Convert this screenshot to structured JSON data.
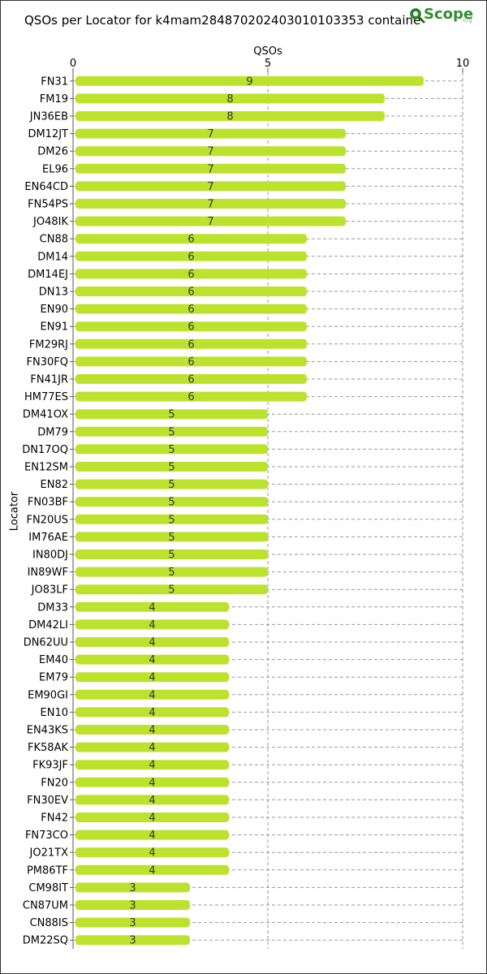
{
  "title": "QSOs per Locator for k4mam284870202403010103353 containe",
  "logo": {
    "brand": "Scope",
    "tld": ".org"
  },
  "chart_data": {
    "type": "bar",
    "orientation": "horizontal",
    "xlabel": "QSOs",
    "ylabel": "Locator",
    "xlim": [
      0,
      10
    ],
    "xticks": [
      0,
      5,
      10
    ],
    "grid": true,
    "bar_color": "#bde22e",
    "categories": [
      "FN31",
      "FM19",
      "JN36EB",
      "DM12JT",
      "DM26",
      "EL96",
      "EN64CD",
      "FN54PS",
      "JO48IK",
      "CN88",
      "DM14",
      "DM14EJ",
      "DN13",
      "EN90",
      "EN91",
      "FM29RJ",
      "FN30FQ",
      "FN41JR",
      "HM77ES",
      "DM41OX",
      "DM79",
      "DN17OQ",
      "EN12SM",
      "EN82",
      "FN03BF",
      "FN20US",
      "IM76AE",
      "IN80DJ",
      "IN89WF",
      "JO83LF",
      "DM33",
      "DM42LI",
      "DN62UU",
      "EM40",
      "EM79",
      "EM90GI",
      "EN10",
      "EN43KS",
      "FK58AK",
      "FK93JF",
      "FN20",
      "FN30EV",
      "FN42",
      "FN73CO",
      "JO21TX",
      "PM86TF",
      "CM98IT",
      "CN87UM",
      "CN88IS",
      "DM22SQ"
    ],
    "values": [
      9,
      8,
      8,
      7,
      7,
      7,
      7,
      7,
      7,
      6,
      6,
      6,
      6,
      6,
      6,
      6,
      6,
      6,
      6,
      5,
      5,
      5,
      5,
      5,
      5,
      5,
      5,
      5,
      5,
      5,
      4,
      4,
      4,
      4,
      4,
      4,
      4,
      4,
      4,
      4,
      4,
      4,
      4,
      4,
      4,
      4,
      3,
      3,
      3,
      3
    ]
  }
}
